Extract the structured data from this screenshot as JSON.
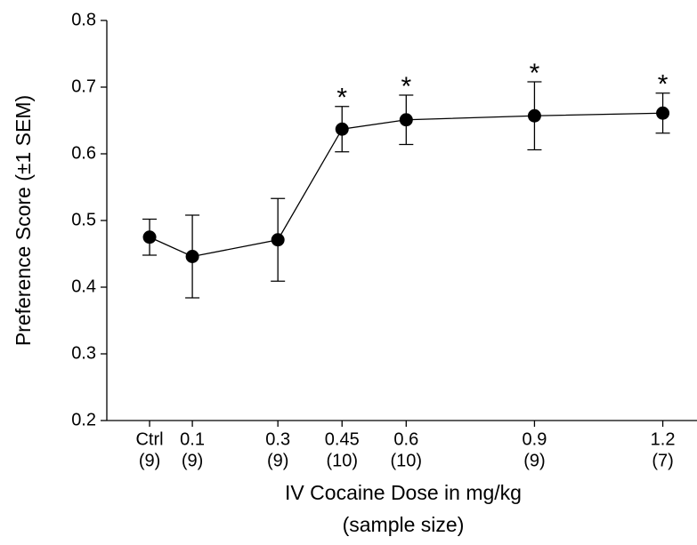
{
  "chart_data": {
    "type": "line",
    "x_label": "IV Cocaine Dose in mg/kg",
    "x_label_sub": "(sample size)",
    "y_label": "Preference Score (±1 SEM)",
    "x": [
      0,
      0.1,
      0.3,
      0.45,
      0.6,
      0.9,
      1.2
    ],
    "values": [
      0.475,
      0.446,
      0.471,
      0.637,
      0.651,
      0.657,
      0.661
    ],
    "errors": [
      0.027,
      0.062,
      0.062,
      0.034,
      0.037,
      0.051,
      0.03
    ],
    "annotations": [
      null,
      null,
      null,
      "*",
      "*",
      "*",
      "*"
    ],
    "color": "#000000",
    "xlim": [
      -0.1,
      1.28
    ],
    "xticks": [
      {
        "value": 0,
        "label": "Ctrl"
      },
      0.1,
      0.3,
      0.45,
      0.6,
      0.9,
      1.2
    ],
    "sample_sizes": [
      "(9)",
      "(9)",
      "(9)",
      "(10)",
      "(10)",
      "(9)",
      "(7)"
    ],
    "ylim": [
      0.2,
      0.8
    ],
    "yticks": [
      0.2,
      0.3,
      0.4,
      0.5,
      0.6,
      0.7,
      0.8
    ]
  }
}
